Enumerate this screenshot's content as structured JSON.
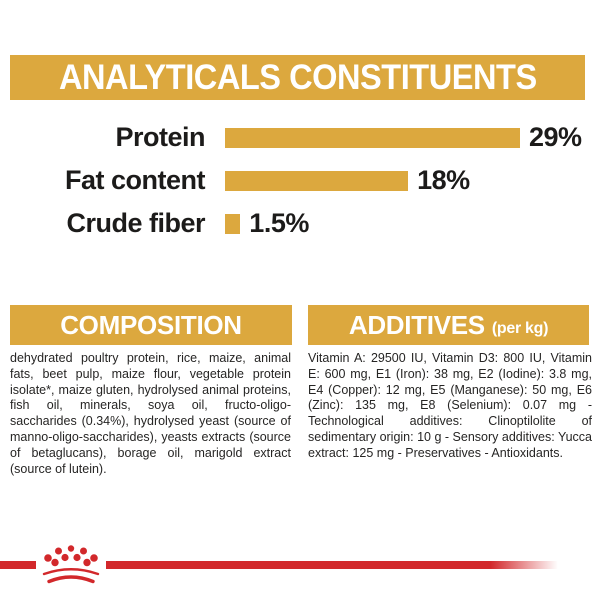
{
  "colors": {
    "gold": "#dca83e",
    "red": "#d2282b",
    "text_black": "#1c1b1a",
    "background": "#ffffff"
  },
  "analyticals": {
    "title": "ANALYTICALS CONSTITUENTS"
  },
  "chart_data": {
    "type": "bar",
    "orientation": "horizontal",
    "title": "ANALYTICALS CONSTITUENTS",
    "categories": [
      "Protein",
      "Fat content",
      "Crude fiber"
    ],
    "values": [
      29,
      18,
      1.5
    ],
    "value_labels": [
      "29%",
      "18%",
      "1.5%"
    ],
    "unit": "%",
    "xlim": [
      0,
      29
    ],
    "bar_color": "#dca83e",
    "grid": false,
    "legend": false
  },
  "composition": {
    "title": "COMPOSITION",
    "body": "dehydrated poultry protein, rice, maize, animal fats, beet pulp, maize flour, vegetable protein isolate*, maize gluten, hydrolysed animal proteins, fish oil, minerals, soya oil, fructo-oligo- saccharides (0.34%), hydrolysed yeast (source of manno-oligo-saccharides), yeasts extracts (source of betaglucans), borage oil, marigold extract (source of lutein)."
  },
  "additives": {
    "title": "ADDITIVES",
    "subtitle": "(per kg)",
    "body": "Vitamin A: 29500 IU, Vitamin D3: 800 IU, Vitamin E: 600 mg, E1 (Iron): 38 mg, E2 (Iodine): 3.8 mg, E4 (Copper): 12 mg, E5 (Manganese): 50 mg, E6 (Zinc): 135 mg, E8 (Selenium): 0.07 mg - Technological additives: Clinoptilolite of sedimentary origin: 10 g - Sensory additives: Yucca extract: 125 mg - Preservatives - Antioxidants."
  },
  "footer": {
    "logo": "royal-canin-crown"
  }
}
